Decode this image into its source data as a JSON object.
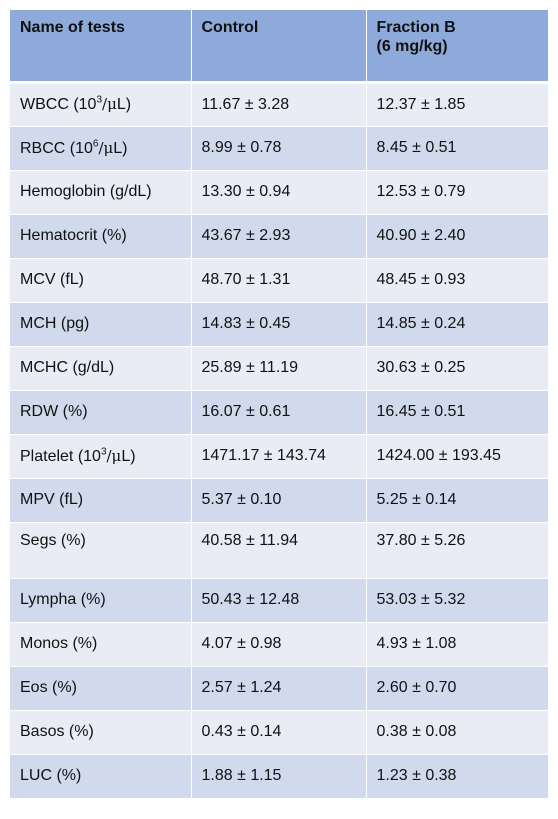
{
  "headers": {
    "name": "Name of tests",
    "control": "Control",
    "fraction_line1": "Fraction B",
    "fraction_line2": "(6 mg/kg)"
  },
  "rows": [
    {
      "name_pre": "WBCC (10",
      "name_sup": "3",
      "name_mu": "/μ",
      "name_post": "L)",
      "control": "11.67 ± 3.28",
      "fraction": "12.37 ± 1.85"
    },
    {
      "name_pre": "RBCC (10",
      "name_sup": "6",
      "name_mu": "/μ",
      "name_post": "L)",
      "control": "8.99 ± 0.78",
      "fraction": "8.45 ± 0.51"
    },
    {
      "name": "Hemoglobin (g/dL)",
      "control": "13.30 ± 0.94",
      "fraction": "12.53 ± 0.79"
    },
    {
      "name": "Hematocrit (%)",
      "control": "43.67 ± 2.93",
      "fraction": "40.90 ± 2.40"
    },
    {
      "name": "MCV (fL)",
      "control": "48.70 ± 1.31",
      "fraction": "48.45 ± 0.93"
    },
    {
      "name": "MCH (pg)",
      "control": "14.83 ± 0.45",
      "fraction": "14.85 ± 0.24"
    },
    {
      "name": "MCHC (g/dL)",
      "control": "25.89 ± 11.19",
      "fraction": "30.63 ± 0.25"
    },
    {
      "name": "RDW (%)",
      "control": "16.07 ± 0.61",
      "fraction": "16.45 ± 0.51"
    },
    {
      "name_pre": "Platelet (10",
      "name_sup": "3",
      "name_mu": "/μ",
      "name_post": "L)",
      "control": "1471.17 ± 143.74",
      "fraction": "1424.00 ± 193.45"
    },
    {
      "name": "MPV (fL)",
      "control": "5.37 ± 0.10",
      "fraction": "5.25 ± 0.14"
    },
    {
      "name": "Segs (%)",
      "control": "40.58 ± 11.94",
      "fraction": "37.80 ± 5.26"
    },
    {
      "name": "Lympha (%)",
      "control": "50.43 ± 12.48",
      "fraction": "53.03 ± 5.32"
    },
    {
      "name": "Monos (%)",
      "control": "4.07 ± 0.98",
      "fraction": "4.93 ± 1.08"
    },
    {
      "name": "Eos (%)",
      "control": "2.57 ± 1.24",
      "fraction": "2.60 ± 0.70"
    },
    {
      "name": "Basos (%)",
      "control": "0.43 ± 0.14",
      "fraction": "0.38 ± 0.08"
    },
    {
      "name": "LUC (%)",
      "control": "1.88 ± 1.15",
      "fraction": "1.23 ± 0.38"
    }
  ],
  "colors": {
    "header_bg": "#8eaadb",
    "row_light": "#e9ecf5",
    "row_dark": "#d1d9ed"
  }
}
